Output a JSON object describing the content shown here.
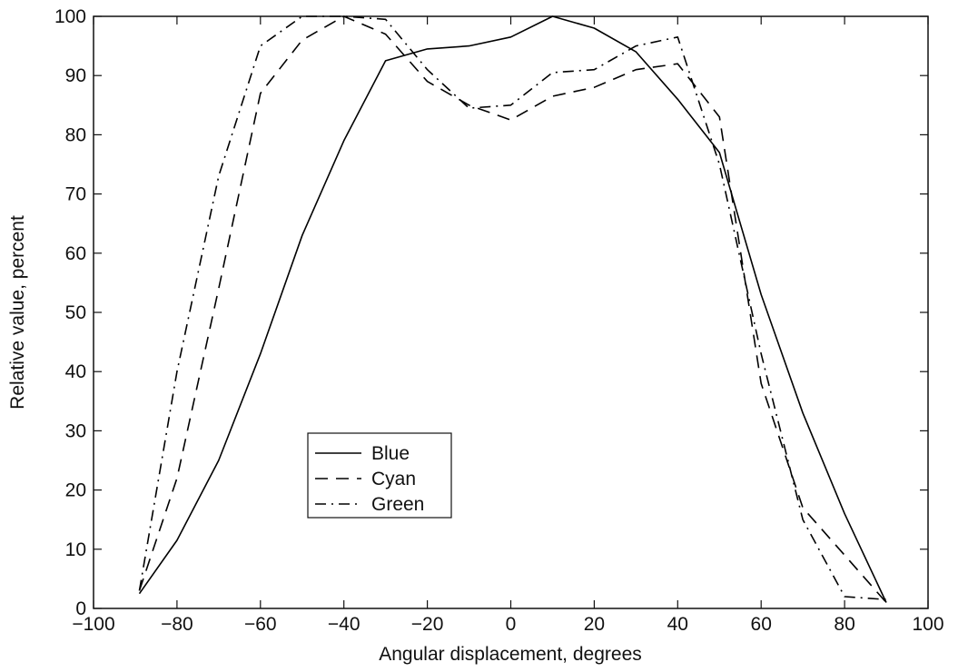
{
  "chart_data": {
    "type": "line",
    "title": "",
    "xlabel": "Angular displacement, degrees",
    "ylabel": "Relative value, percent",
    "xlim": [
      -100,
      100
    ],
    "ylim": [
      0,
      100
    ],
    "xticks": [
      -100,
      -80,
      -60,
      -40,
      -20,
      0,
      20,
      40,
      60,
      80,
      100
    ],
    "yticks": [
      0,
      10,
      20,
      30,
      40,
      50,
      60,
      70,
      80,
      90,
      100
    ],
    "xtick_labels": [
      "−100",
      "−80",
      "−60",
      "−40",
      "−20",
      "0",
      "20",
      "40",
      "60",
      "80",
      "100"
    ],
    "ytick_labels": [
      "0",
      "10",
      "20",
      "30",
      "40",
      "50",
      "60",
      "70",
      "80",
      "90",
      "100"
    ],
    "grid": false,
    "legend_position": "lower-left",
    "series": [
      {
        "name": "Blue",
        "style": "solid",
        "color": "#000000",
        "x": [
          -89,
          -80,
          -70,
          -60,
          -50,
          -40,
          -30,
          -20,
          -10,
          0,
          10,
          20,
          30,
          40,
          50,
          60,
          70,
          80,
          90
        ],
        "y": [
          2.5,
          11.5,
          25,
          43,
          63,
          79,
          92.5,
          94.5,
          95,
          96.5,
          100,
          98,
          94,
          86,
          77,
          53,
          33,
          16,
          1
        ]
      },
      {
        "name": "Cyan",
        "style": "dashed",
        "color": "#000000",
        "x": [
          -89,
          -80,
          -70,
          -60,
          -50,
          -40,
          -30,
          -20,
          -10,
          0,
          10,
          20,
          30,
          40,
          50,
          60,
          70,
          80,
          90
        ],
        "y": [
          3,
          22,
          54,
          87,
          96,
          100,
          97,
          89,
          85,
          82.5,
          86.5,
          88,
          91,
          92,
          83,
          38,
          17,
          9,
          1
        ]
      },
      {
        "name": "Green",
        "style": "dashdot",
        "color": "#000000",
        "x": [
          -89,
          -80,
          -70,
          -60,
          -50,
          -40,
          -30,
          -20,
          -10,
          0,
          10,
          20,
          30,
          40,
          50,
          60,
          70,
          80,
          90
        ],
        "y": [
          3,
          40,
          73,
          95,
          100,
          100,
          99.5,
          91,
          84.5,
          85,
          90.5,
          91,
          95,
          96.5,
          75,
          43,
          15,
          2,
          1.5
        ]
      }
    ]
  }
}
